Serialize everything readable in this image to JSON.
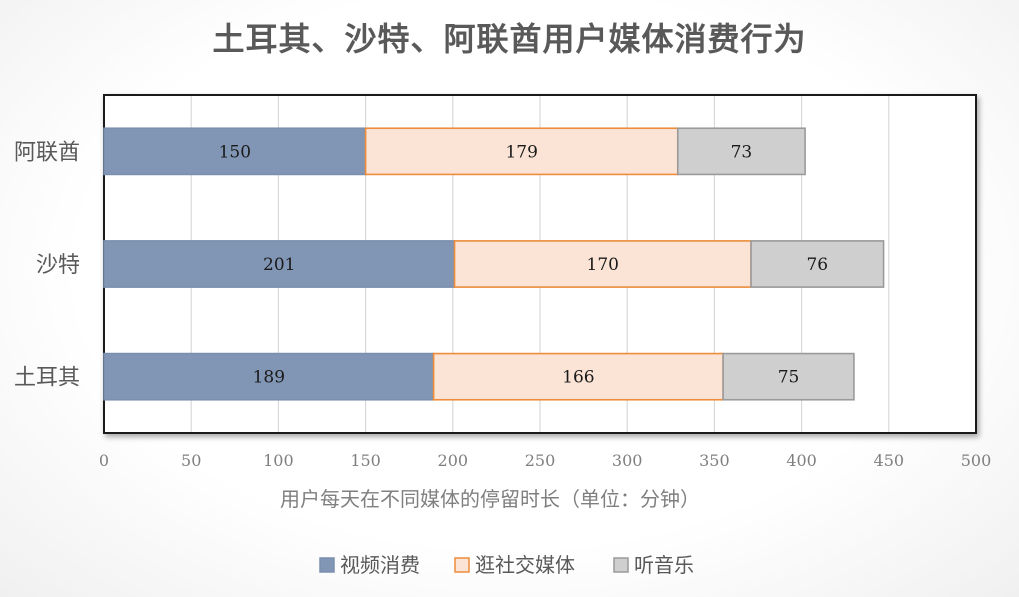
{
  "title": "土耳其、沙特、阿联酋用户媒体消费行为",
  "chart_data": {
    "type": "bar",
    "orientation": "horizontal",
    "stacked": true,
    "title": "土耳其、沙特、阿联酋用户媒体消费行为",
    "xlabel": "用户每天在不同媒体的停留时长（单位：分钟）",
    "ylabel": "",
    "xlim": [
      0,
      500
    ],
    "xticks": [
      "0",
      "50",
      "100",
      "150",
      "200",
      "250",
      "300",
      "350",
      "400",
      "450",
      "500"
    ],
    "categories": [
      "阿联酋",
      "沙特",
      "土耳其"
    ],
    "series": [
      {
        "name": "视频消费",
        "values": [
          150,
          201,
          189
        ],
        "color": "#8196b4",
        "stroke": "#7a8fae"
      },
      {
        "name": "逛社交媒体",
        "values": [
          179,
          170,
          166
        ],
        "color": "#fbe4d5",
        "stroke": "#ed8d3b"
      },
      {
        "name": "听音乐",
        "values": [
          73,
          76,
          75
        ],
        "color": "#cfcfcf",
        "stroke": "#9a9a9a"
      }
    ],
    "grid": true,
    "legend_position": "bottom"
  }
}
